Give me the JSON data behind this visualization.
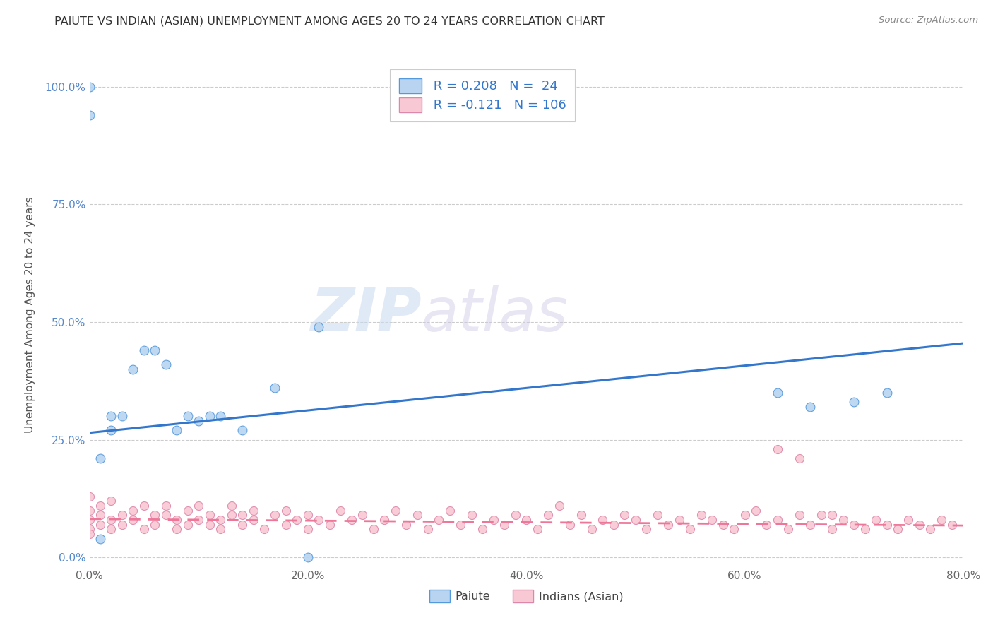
{
  "title": "PAIUTE VS INDIAN (ASIAN) UNEMPLOYMENT AMONG AGES 20 TO 24 YEARS CORRELATION CHART",
  "source": "Source: ZipAtlas.com",
  "ylabel": "Unemployment Among Ages 20 to 24 years",
  "xlim": [
    0.0,
    0.8
  ],
  "ylim": [
    -0.02,
    1.05
  ],
  "xticks": [
    0.0,
    0.2,
    0.4,
    0.6,
    0.8
  ],
  "xticklabels": [
    "0.0%",
    "20.0%",
    "40.0%",
    "60.0%",
    "80.0%"
  ],
  "yticks": [
    0.0,
    0.25,
    0.5,
    0.75,
    1.0
  ],
  "yticklabels": [
    "0.0%",
    "25.0%",
    "50.0%",
    "75.0%",
    "100.0%"
  ],
  "paiute_fill_color": "#b8d4f0",
  "paiute_edge_color": "#5599dd",
  "indian_fill_color": "#f8c8d4",
  "indian_edge_color": "#dd88aa",
  "paiute_line_color": "#3377cc",
  "indian_line_color": "#ee7799",
  "legend_R_paiute": "R = 0.208",
  "legend_N_paiute": "N =  24",
  "legend_R_indian": "R = -0.121",
  "legend_N_indian": "N = 106",
  "legend_color": "#3377cc",
  "paiute_x": [
    0.01,
    0.01,
    0.02,
    0.02,
    0.03,
    0.04,
    0.05,
    0.06,
    0.07,
    0.08,
    0.09,
    0.1,
    0.11,
    0.12,
    0.14,
    0.17,
    0.2,
    0.21,
    0.63,
    0.66,
    0.7,
    0.0,
    0.0,
    0.73
  ],
  "paiute_y": [
    0.04,
    0.21,
    0.27,
    0.3,
    0.3,
    0.4,
    0.44,
    0.44,
    0.41,
    0.27,
    0.3,
    0.29,
    0.3,
    0.3,
    0.27,
    0.36,
    0.0,
    0.49,
    0.35,
    0.32,
    0.33,
    0.94,
    1.0,
    0.35
  ],
  "indian_x": [
    0.0,
    0.0,
    0.0,
    0.0,
    0.0,
    0.01,
    0.01,
    0.01,
    0.02,
    0.02,
    0.02,
    0.03,
    0.03,
    0.04,
    0.04,
    0.05,
    0.05,
    0.06,
    0.06,
    0.07,
    0.07,
    0.08,
    0.08,
    0.09,
    0.09,
    0.1,
    0.1,
    0.11,
    0.11,
    0.12,
    0.12,
    0.13,
    0.13,
    0.14,
    0.14,
    0.15,
    0.15,
    0.16,
    0.17,
    0.18,
    0.18,
    0.19,
    0.2,
    0.2,
    0.21,
    0.22,
    0.23,
    0.24,
    0.25,
    0.26,
    0.27,
    0.28,
    0.29,
    0.3,
    0.31,
    0.32,
    0.33,
    0.34,
    0.35,
    0.36,
    0.37,
    0.38,
    0.39,
    0.4,
    0.41,
    0.42,
    0.43,
    0.44,
    0.45,
    0.46,
    0.47,
    0.48,
    0.49,
    0.5,
    0.51,
    0.52,
    0.53,
    0.54,
    0.55,
    0.56,
    0.57,
    0.58,
    0.59,
    0.6,
    0.61,
    0.62,
    0.63,
    0.64,
    0.65,
    0.66,
    0.67,
    0.68,
    0.69,
    0.7,
    0.71,
    0.72,
    0.73,
    0.74,
    0.75,
    0.76,
    0.77,
    0.78,
    0.79,
    0.63,
    0.65,
    0.68
  ],
  "indian_y": [
    0.08,
    0.1,
    0.13,
    0.06,
    0.05,
    0.09,
    0.07,
    0.11,
    0.08,
    0.12,
    0.06,
    0.09,
    0.07,
    0.08,
    0.1,
    0.11,
    0.06,
    0.09,
    0.07,
    0.09,
    0.11,
    0.08,
    0.06,
    0.1,
    0.07,
    0.08,
    0.11,
    0.07,
    0.09,
    0.08,
    0.06,
    0.09,
    0.11,
    0.07,
    0.09,
    0.08,
    0.1,
    0.06,
    0.09,
    0.07,
    0.1,
    0.08,
    0.06,
    0.09,
    0.08,
    0.07,
    0.1,
    0.08,
    0.09,
    0.06,
    0.08,
    0.1,
    0.07,
    0.09,
    0.06,
    0.08,
    0.1,
    0.07,
    0.09,
    0.06,
    0.08,
    0.07,
    0.09,
    0.08,
    0.06,
    0.09,
    0.11,
    0.07,
    0.09,
    0.06,
    0.08,
    0.07,
    0.09,
    0.08,
    0.06,
    0.09,
    0.07,
    0.08,
    0.06,
    0.09,
    0.08,
    0.07,
    0.06,
    0.09,
    0.1,
    0.07,
    0.08,
    0.06,
    0.09,
    0.07,
    0.09,
    0.06,
    0.08,
    0.07,
    0.06,
    0.08,
    0.07,
    0.06,
    0.08,
    0.07,
    0.06,
    0.08,
    0.07,
    0.23,
    0.21,
    0.09
  ],
  "paiute_trend_x0": 0.0,
  "paiute_trend_y0": 0.265,
  "paiute_trend_x1": 0.8,
  "paiute_trend_y1": 0.455,
  "indian_trend_x0": 0.0,
  "indian_trend_y0": 0.082,
  "indian_trend_x1": 0.8,
  "indian_trend_y1": 0.068
}
